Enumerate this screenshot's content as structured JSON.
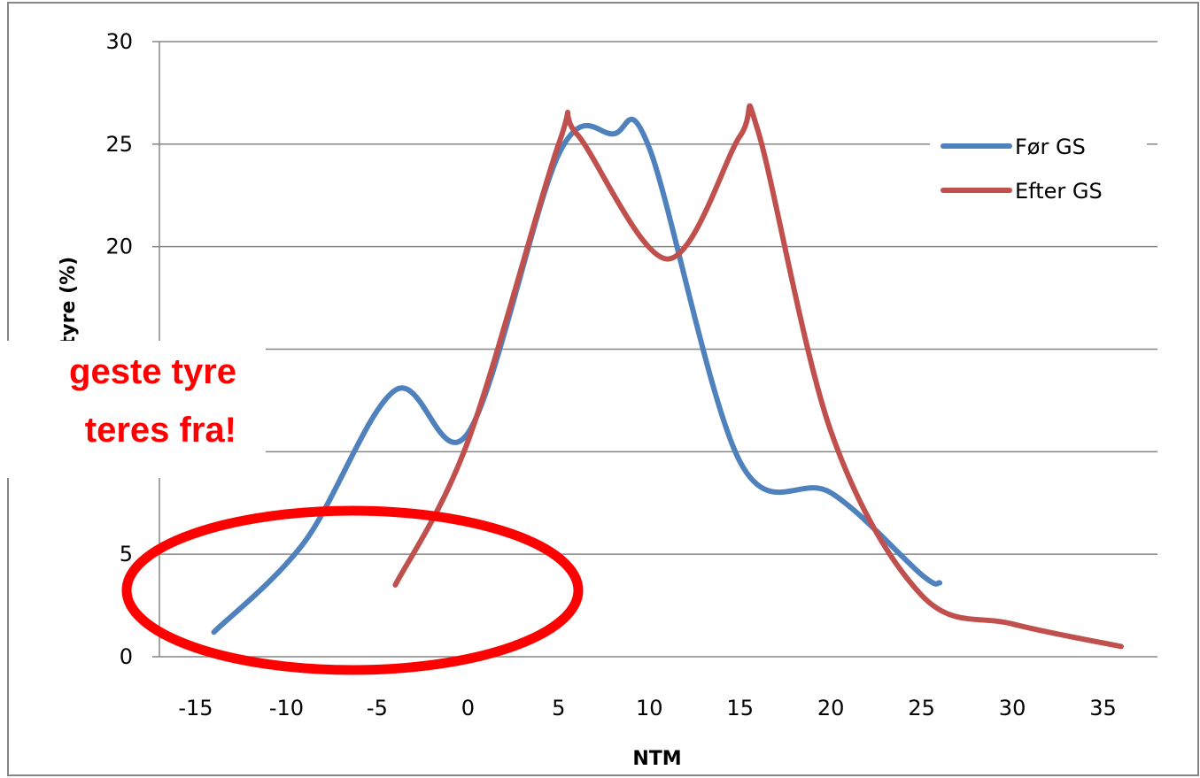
{
  "chart_data": {
    "type": "line",
    "title": "",
    "xlabel": "NTM",
    "ylabel": "tyre (%)",
    "xlim": [
      -17,
      38
    ],
    "ylim": [
      0,
      30
    ],
    "x_ticks": [
      "-15",
      "-10",
      "-5",
      "0",
      "5",
      "10",
      "15",
      "20",
      "25",
      "30",
      "35"
    ],
    "y_ticks": [
      "0",
      "5",
      "20",
      "25",
      "30"
    ],
    "grid": "horizontal",
    "legend_position": "top-right",
    "series": [
      {
        "name": "Før GS",
        "color": "#4f81bd",
        "points": [
          [
            -14,
            1.2
          ],
          [
            -9,
            5.6
          ],
          [
            -4,
            13
          ],
          [
            0,
            10.9
          ],
          [
            5,
            24.5
          ],
          [
            8,
            25.5
          ],
          [
            10,
            24.8
          ],
          [
            15,
            9.5
          ],
          [
            20,
            8
          ],
          [
            25,
            4
          ],
          [
            26,
            3.6
          ]
        ]
      },
      {
        "name": "Efter GS",
        "color": "#c0504d",
        "points": [
          [
            -4,
            3.5
          ],
          [
            0,
            10.5
          ],
          [
            5,
            25
          ],
          [
            6,
            25.5
          ],
          [
            11,
            19.4
          ],
          [
            15,
            25.4
          ],
          [
            16,
            25.6
          ],
          [
            20,
            11
          ],
          [
            25,
            3
          ],
          [
            30,
            1.6
          ],
          [
            36,
            0.5
          ]
        ]
      }
    ],
    "annotations": {
      "callout_lines": [
        "geste tyre",
        "teres fra!"
      ],
      "callout_color": "#ff0000"
    }
  }
}
